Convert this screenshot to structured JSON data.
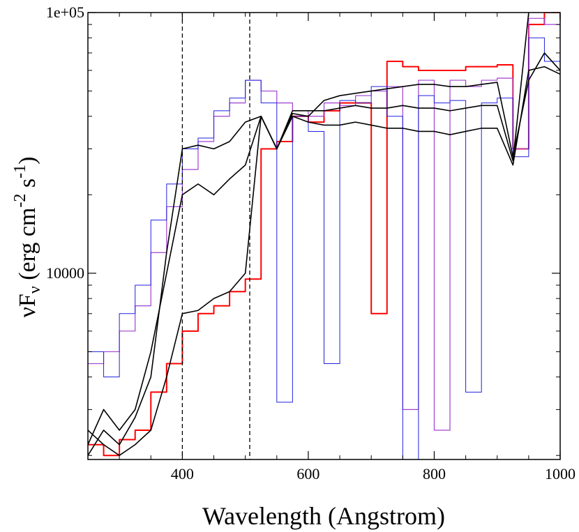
{
  "chart_data": {
    "type": "line",
    "xlabel": "Wavelength (Angstrom)",
    "ylabel_parts": [
      {
        "text": "νF",
        "shift": "none"
      },
      {
        "text": "ν",
        "shift": "sub"
      },
      {
        "text": " (erg cm",
        "shift": "none"
      },
      {
        "text": "-2",
        "shift": "sup"
      },
      {
        "text": " s",
        "shift": "none"
      },
      {
        "text": "-1",
        "shift": "sup"
      },
      {
        "text": ")",
        "shift": "none"
      }
    ],
    "log_y": true,
    "step": true,
    "xlim": [
      250,
      1000
    ],
    "ylim": [
      1930,
      100000
    ],
    "xticks": [
      400,
      600,
      800,
      1000
    ],
    "x_minor_ticks": [
      250,
      300,
      350,
      450,
      500,
      550,
      650,
      700,
      750,
      850,
      900,
      950
    ],
    "yticks": [
      {
        "value": 100000,
        "label": "1e+05"
      },
      10000
    ],
    "y_minor_ticks": [
      2000,
      3000,
      4000,
      5000,
      6000,
      7000,
      8000,
      9000,
      20000,
      30000,
      40000,
      50000,
      60000,
      70000,
      80000,
      90000
    ],
    "vlines": [
      400,
      507
    ],
    "x": [
      250,
      275,
      300,
      325,
      350,
      375,
      400,
      425,
      450,
      475,
      500,
      525,
      550,
      575,
      600,
      625,
      650,
      675,
      700,
      725,
      750,
      775,
      800,
      825,
      850,
      875,
      900,
      925,
      950,
      975,
      1000
    ],
    "series": [
      {
        "color": "#ff0000",
        "width": 2,
        "smooth": false,
        "values": [
          2200,
          2000,
          2300,
          2500,
          3500,
          4500,
          6000,
          7000,
          7500,
          8500,
          9500,
          30000,
          32000,
          40000,
          38000,
          42000,
          45000,
          45000,
          7000,
          65000,
          62000,
          60000,
          60000,
          60000,
          62000,
          62000,
          63000,
          30000,
          90000,
          100000,
          95000
        ]
      },
      {
        "color": "#a040d0",
        "width": 1.2,
        "smooth": false,
        "values": [
          4500,
          5000,
          6000,
          7500,
          12000,
          18000,
          25000,
          32000,
          40000,
          45000,
          55000,
          50000,
          45000,
          42000,
          40000,
          45000,
          44000,
          48000,
          50000,
          52000,
          3000,
          55000,
          2500,
          55000,
          52000,
          55000,
          56000,
          30000,
          95000,
          90000,
          80000
        ]
      },
      {
        "color": "#2020e0",
        "width": 1,
        "smooth": false,
        "values": [
          5000,
          4000,
          7000,
          9000,
          16000,
          22000,
          30000,
          33000,
          42000,
          47000,
          55000,
          45000,
          3200,
          40000,
          35000,
          4500,
          46000,
          45000,
          52000,
          40000,
          1900,
          48000,
          45000,
          46000,
          3500,
          45000,
          47000,
          28000,
          80000,
          65000,
          60000
        ]
      },
      {
        "color": "#000000",
        "width": 1.6,
        "smooth": true,
        "values": [
          2000,
          2500,
          2200,
          2800,
          4000,
          12000,
          30000,
          31000,
          30000,
          32000,
          38000,
          40000,
          30000,
          41000,
          40000,
          46000,
          48000,
          49000,
          50000,
          51000,
          52000,
          53000,
          53000,
          52000,
          52000,
          53000,
          54000,
          28000,
          55000,
          70000,
          60000
        ]
      },
      {
        "color": "#000000",
        "width": 1.6,
        "smooth": true,
        "values": [
          2200,
          3000,
          2500,
          3000,
          5000,
          10000,
          20000,
          22000,
          20000,
          23000,
          26000,
          40000,
          30000,
          42000,
          42000,
          42000,
          43000,
          44000,
          43000,
          43000,
          44000,
          43000,
          43000,
          42000,
          43000,
          44000,
          44000,
          27000,
          100000,
          105000,
          100000
        ]
      },
      {
        "color": "#000000",
        "width": 1.6,
        "smooth": true,
        "values": [
          2500,
          2200,
          2000,
          2200,
          2500,
          4000,
          7000,
          7200,
          8000,
          8500,
          10000,
          40000,
          30000,
          40000,
          38000,
          37000,
          37000,
          38000,
          37000,
          36000,
          36000,
          35000,
          35000,
          34000,
          35000,
          36000,
          36000,
          26000,
          60000,
          62000,
          58000
        ]
      }
    ]
  }
}
